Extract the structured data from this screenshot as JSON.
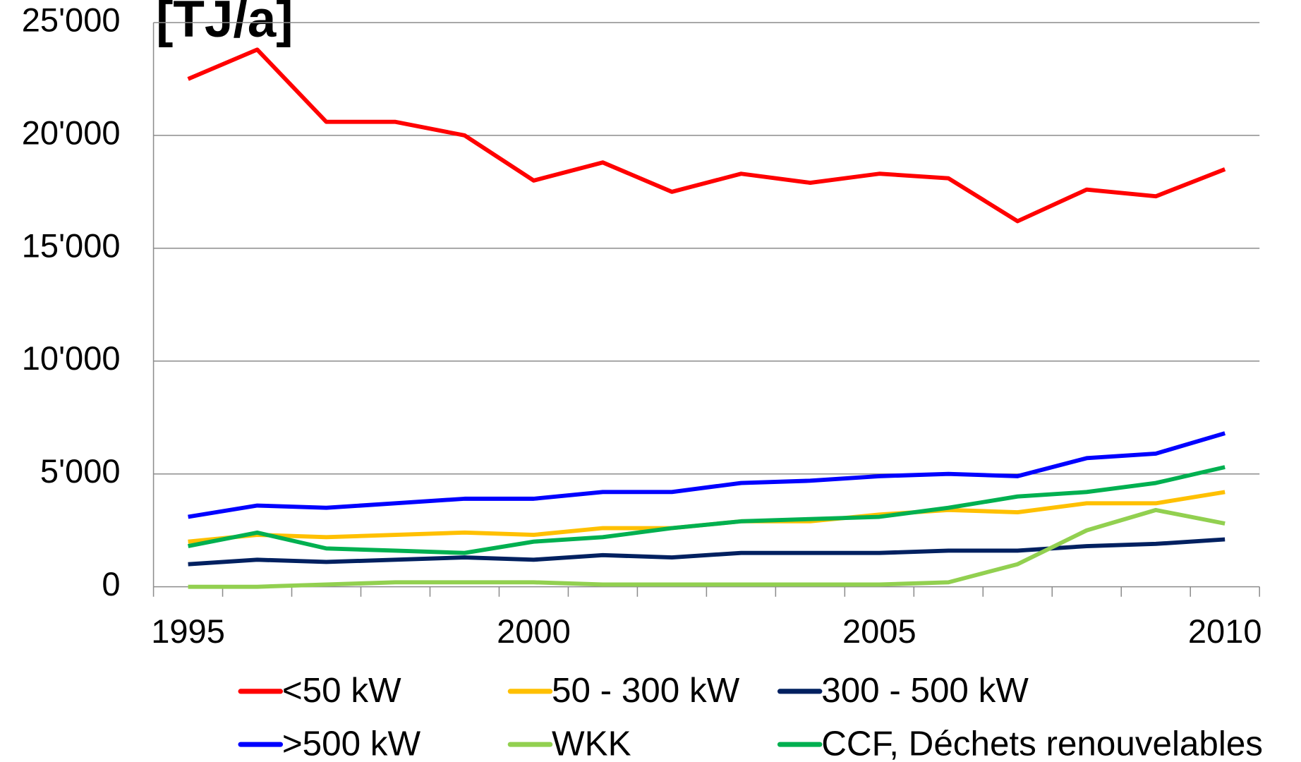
{
  "chart_data": {
    "type": "line",
    "title": "[TJ/a]",
    "categories": [
      1995,
      null,
      null,
      null,
      null,
      2000,
      null,
      null,
      null,
      null,
      2005,
      null,
      null,
      null,
      null,
      2010
    ],
    "series": [
      {
        "name": "<50 kW",
        "color": "#ff0000",
        "values": [
          22500,
          23800,
          20600,
          20600,
          20000,
          18000,
          18800,
          17500,
          18300,
          17900,
          18300,
          18100,
          16200,
          17600,
          17300,
          18500
        ]
      },
      {
        "name": "50 - 300 kW",
        "color": "#ffc000",
        "values": [
          2000,
          2300,
          2200,
          2300,
          2400,
          2300,
          2600,
          2600,
          2900,
          2900,
          3200,
          3400,
          3300,
          3700,
          3700,
          4200
        ]
      },
      {
        "name": "300 - 500 kW",
        "color": "#002060",
        "values": [
          1000,
          1200,
          1100,
          1200,
          1300,
          1200,
          1400,
          1300,
          1500,
          1500,
          1500,
          1600,
          1600,
          1800,
          1900,
          2100
        ]
      },
      {
        "name": ">500 kW",
        "color": "#0000ff",
        "values": [
          3100,
          3600,
          3500,
          3700,
          3900,
          3900,
          4200,
          4200,
          4600,
          4700,
          4900,
          5000,
          4900,
          5700,
          5900,
          6800
        ]
      },
      {
        "name": "WKK",
        "color": "#92d050",
        "values": [
          0,
          0,
          100,
          200,
          200,
          200,
          100,
          100,
          100,
          100,
          100,
          200,
          1000,
          2500,
          3400,
          2800
        ]
      },
      {
        "name": "CCF, Déchets renouvelables",
        "color": "#00b050",
        "values": [
          1800,
          2400,
          1700,
          1600,
          1500,
          2000,
          2200,
          2600,
          2900,
          3000,
          3100,
          3500,
          4000,
          4200,
          4600,
          5300
        ]
      }
    ],
    "ylim": [
      0,
      25000
    ],
    "yticks": [
      0,
      {
        "value": 5000,
        "label": "5'000"
      },
      {
        "value": 10000,
        "label": "10'000"
      },
      {
        "value": 15000,
        "label": "15'000"
      },
      {
        "value": 20000,
        "label": "20'000"
      },
      {
        "value": 25000,
        "label": "25'000"
      }
    ],
    "grid": true,
    "legend": "bottom"
  }
}
